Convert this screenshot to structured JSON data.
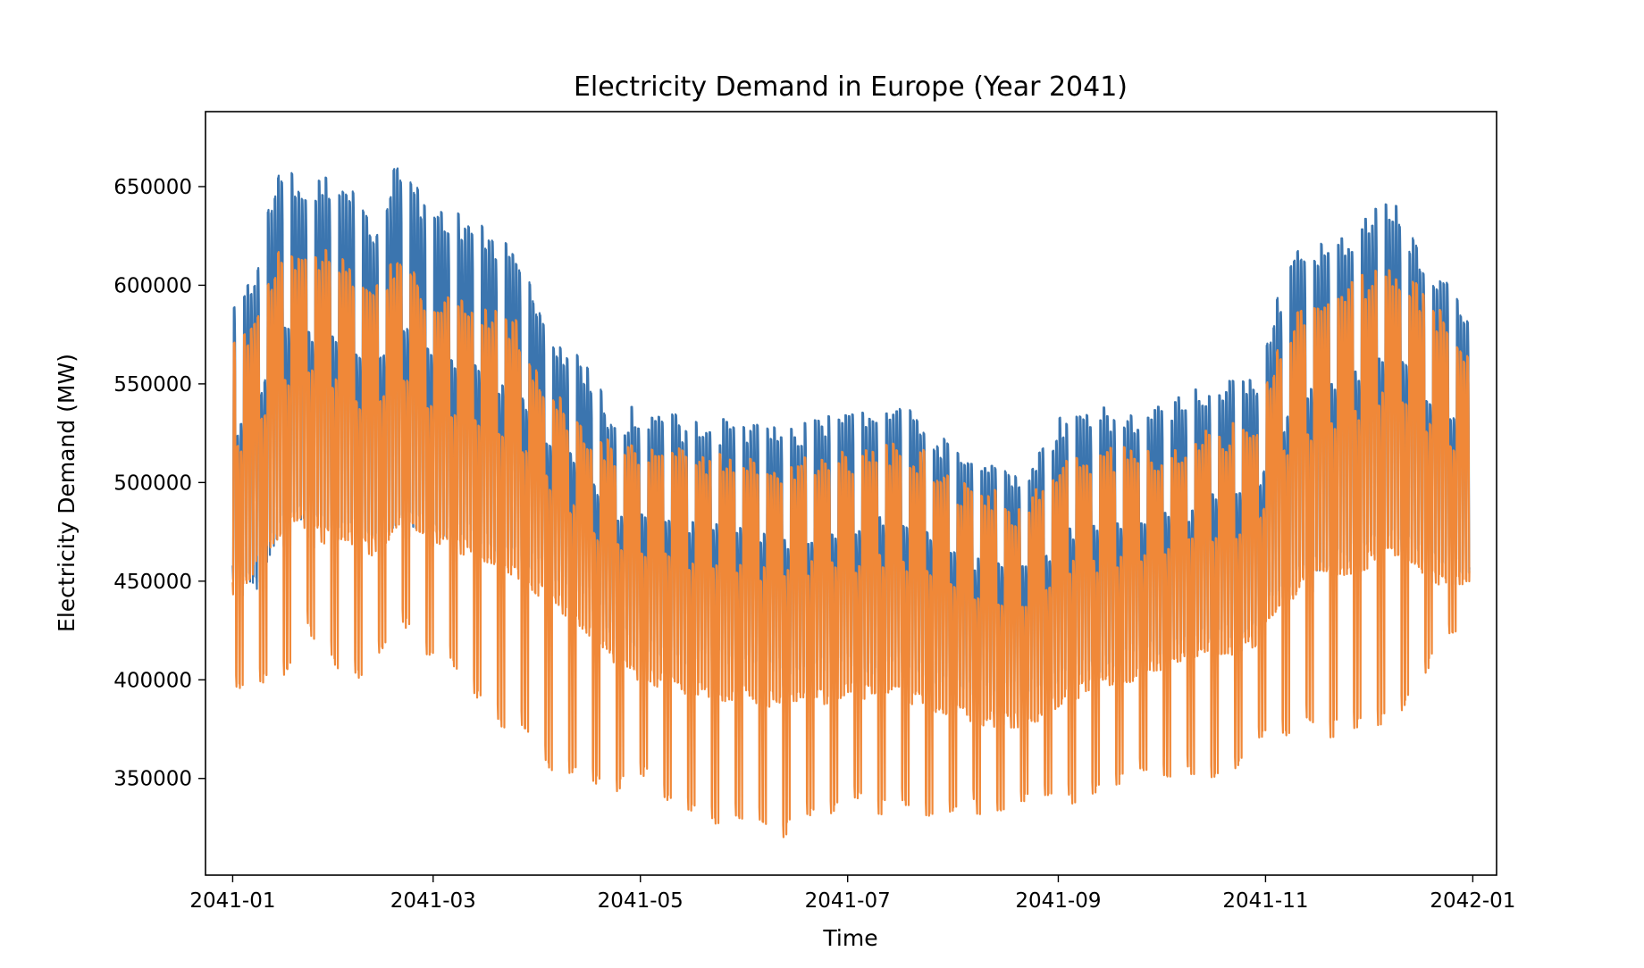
{
  "chart_data": {
    "type": "line",
    "title": "Electricity Demand in Europe (Year 2041)",
    "xlabel": "Time",
    "ylabel": "Electricity Demand (MW)",
    "xlim": [
      "2040-12-24",
      "2042-01-08"
    ],
    "ylim": [
      301000,
      688000
    ],
    "xticks": [
      "2041-01",
      "2041-03",
      "2041-05",
      "2041-07",
      "2041-09",
      "2041-11",
      "2042-01"
    ],
    "yticks": [
      350000,
      400000,
      450000,
      500000,
      550000,
      600000,
      650000
    ],
    "grid": false,
    "legend": "none",
    "x": [
      "2041-01-01",
      "2041-01-08",
      "2041-01-15",
      "2041-01-22",
      "2041-01-29",
      "2041-02-05",
      "2041-02-12",
      "2041-02-19",
      "2041-02-26",
      "2041-03-05",
      "2041-03-12",
      "2041-03-19",
      "2041-03-26",
      "2041-04-02",
      "2041-04-09",
      "2041-04-16",
      "2041-04-23",
      "2041-04-30",
      "2041-05-07",
      "2041-05-14",
      "2041-05-21",
      "2041-05-28",
      "2041-06-04",
      "2041-06-11",
      "2041-06-18",
      "2041-06-25",
      "2041-07-02",
      "2041-07-09",
      "2041-07-16",
      "2041-07-23",
      "2041-07-30",
      "2041-08-06",
      "2041-08-13",
      "2041-08-20",
      "2041-08-27",
      "2041-09-03",
      "2041-09-10",
      "2041-09-17",
      "2041-09-24",
      "2041-10-01",
      "2041-10-08",
      "2041-10-15",
      "2041-10-22",
      "2041-10-29",
      "2041-11-05",
      "2041-11-12",
      "2041-11-19",
      "2041-11-26",
      "2041-12-03",
      "2041-12-10",
      "2041-12-17",
      "2041-12-24",
      "2041-12-31"
    ],
    "series": [
      {
        "color": "#3b75af",
        "daily_max": [
          590000,
          612000,
          665000,
          655000,
          657000,
          650000,
          632000,
          668000,
          645000,
          640000,
          635000,
          625000,
          620000,
          585000,
          570000,
          560000,
          535000,
          540000,
          542000,
          532000,
          530000,
          535000,
          532000,
          528000,
          532000,
          535000,
          538000,
          540000,
          548000,
          536000,
          522000,
          515000,
          520000,
          505000,
          520000,
          538000,
          535000,
          540000,
          535000,
          540000,
          545000,
          552000,
          555000,
          555000,
          598000,
          625000,
          622000,
          630000,
          640000,
          645000,
          615000,
          605000,
          588000
        ],
        "daily_min": [
          450000,
          445000,
          475000,
          480000,
          475000,
          475000,
          468000,
          480000,
          475000,
          470000,
          470000,
          465000,
          460000,
          452000,
          448000,
          440000,
          420000,
          415000,
          410000,
          408000,
          410000,
          405000,
          405000,
          402000,
          400000,
          405000,
          405000,
          402000,
          408000,
          400000,
          395000,
          392000,
          390000,
          395000,
          392000,
          400000,
          402000,
          405000,
          410000,
          412000,
          415000,
          420000,
          420000,
          425000,
          440000,
          455000,
          455000,
          460000,
          465000,
          468000,
          460000,
          455000,
          450000
        ],
        "weekend_low": [
          null,
          440000,
          460000,
          465000,
          465000,
          462000,
          458000,
          470000,
          465000,
          460000,
          458000,
          455000,
          448000,
          445000,
          438000,
          430000,
          412000,
          405000,
          405000,
          400000,
          400000,
          395000,
          396000,
          390000,
          390000,
          392000,
          395000,
          392000,
          392000,
          390000,
          382000,
          380000,
          378000,
          375000,
          382000,
          392000,
          395000,
          400000,
          405000,
          405000,
          408000,
          412000,
          412000,
          415000,
          430000,
          442000,
          445000,
          448000,
          452000,
          455000,
          450000,
          440000,
          null
        ]
      },
      {
        "color": "#f08838",
        "daily_max": [
          570000,
          590000,
          622000,
          620000,
          620000,
          610000,
          600000,
          622000,
          600000,
          598000,
          595000,
          590000,
          582000,
          555000,
          540000,
          530000,
          520000,
          520000,
          522000,
          517000,
          515000,
          515000,
          515000,
          512000,
          515000,
          518000,
          518000,
          520000,
          520000,
          518000,
          505000,
          500000,
          498000,
          490000,
          500000,
          515000,
          515000,
          518000,
          518000,
          520000,
          522000,
          528000,
          530000,
          535000,
          575000,
          592000,
          595000,
          602000,
          610000,
          612000,
          598000,
          585000,
          570000
        ],
        "daily_min": [
          440000,
          455000,
          472000,
          475000,
          468000,
          468000,
          462000,
          475000,
          470000,
          465000,
          462000,
          458000,
          450000,
          440000,
          432000,
          420000,
          405000,
          400000,
          395000,
          390000,
          390000,
          388000,
          388000,
          385000,
          385000,
          388000,
          390000,
          390000,
          390000,
          385000,
          380000,
          378000,
          375000,
          375000,
          378000,
          388000,
          392000,
          395000,
          400000,
          402000,
          405000,
          410000,
          410000,
          415000,
          430000,
          448000,
          448000,
          452000,
          458000,
          460000,
          452000,
          445000,
          445000
        ],
        "weekend_low": [
          387000,
          400000,
          395000,
          422000,
          410000,
          395000,
          407000,
          432000,
          407000,
          405000,
          395000,
          376000,
          372000,
          358000,
          347000,
          350000,
          338000,
          350000,
          342000,
          330000,
          326000,
          328000,
          326000,
          318000,
          330000,
          325000,
          335000,
          332000,
          330000,
          330000,
          328000,
          332000,
          330000,
          335000,
          335000,
          335000,
          340000,
          345000,
          348000,
          350000,
          350000,
          350000,
          352000,
          365000,
          368000,
          378000,
          370000,
          372000,
          375000,
          378000,
          400000,
          420000,
          425000
        ]
      }
    ]
  }
}
